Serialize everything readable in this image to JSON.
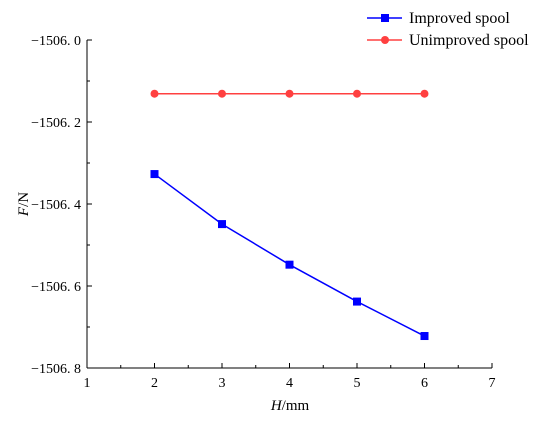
{
  "chart_data": {
    "type": "line",
    "title": "",
    "x_axis": {
      "label_var": "H",
      "label_unit": "/mm",
      "range": [
        1,
        7
      ],
      "ticks": [
        1,
        2,
        3,
        4,
        5,
        6,
        7
      ],
      "tick_labels": [
        "1",
        "2",
        "3",
        "4",
        "5",
        "6",
        "7"
      ]
    },
    "y_axis": {
      "label_var": "F",
      "label_unit": "/N",
      "range": [
        -1506.8,
        -1506.0
      ],
      "ticks": [
        -1506.0,
        -1506.2,
        -1506.4,
        -1506.6,
        -1506.8
      ],
      "tick_labels": [
        "−1506. 0",
        "−1506. 2",
        "−1506. 4",
        "−1506. 6",
        "−1506. 8"
      ]
    },
    "x": [
      2,
      3,
      4,
      5,
      6
    ],
    "series": [
      {
        "name": "Improved spool",
        "color": "#0000ff",
        "marker": "square",
        "values": [
          -1506.327,
          -1506.449,
          -1506.548,
          -1506.638,
          -1506.722
        ]
      },
      {
        "name": "Unimproved spool",
        "color": "#ff4040",
        "marker": "circle",
        "values": [
          -1506.131,
          -1506.131,
          -1506.131,
          -1506.131,
          -1506.131
        ]
      }
    ],
    "legend_position": "top-right",
    "grid": false
  }
}
